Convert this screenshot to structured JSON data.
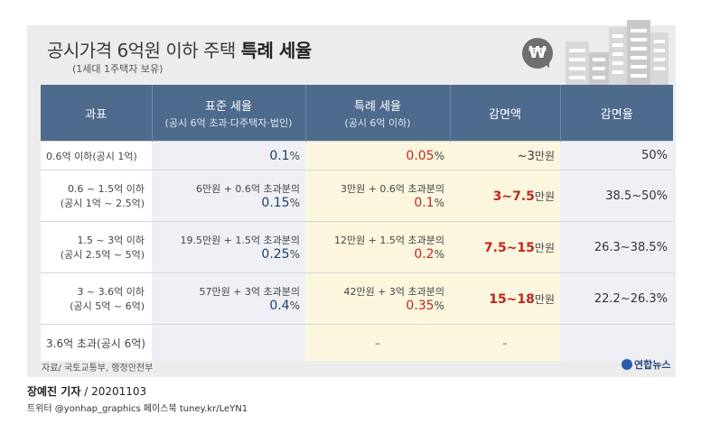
{
  "title": {
    "light": "공시가격 6억원 이하 주택",
    "bold": "특례 세율"
  },
  "subtitle": "(1세대 1주택자 보유)",
  "icon": {
    "name": "won-icon",
    "glyph": "₩"
  },
  "table": {
    "headers": [
      {
        "label": "과표",
        "sub": ""
      },
      {
        "label": "표준 세율",
        "sub": "(공시 6억 초과·다주택자·법인)"
      },
      {
        "label": "특례 세율",
        "sub": "(공시 6억 이하)"
      },
      {
        "label": "감면액",
        "sub": ""
      },
      {
        "label": "감면율",
        "sub": ""
      }
    ],
    "rows": [
      {
        "bracket": "0.6억 이하(공시 1억)",
        "bracket2": "",
        "std_base": "",
        "std_rate": "0.1",
        "std_unit": "%",
        "sp_base": "",
        "sp_rate": "0.05",
        "sp_unit": "%",
        "cut": "~3",
        "cut_unit": "만원",
        "cut_prefix_plain": true,
        "cut_rate": "50%"
      },
      {
        "bracket": "0.6 ~ 1.5억 이하",
        "bracket2": "(공시 1억 ~ 2.5억)",
        "std_base": "6만원 + 0.6억 초과분의",
        "std_rate": "0.15",
        "std_unit": "%",
        "sp_base": "3만원 + 0.6억 초과분의",
        "sp_rate": "0.1",
        "sp_unit": "%",
        "cut": "3~7.5",
        "cut_unit": "만원",
        "cut_rate": "38.5~50%"
      },
      {
        "bracket": "1.5 ~ 3억 이하",
        "bracket2": "(공시 2.5억 ~ 5억)",
        "std_base": "19.5만원 + 1.5억 초과분의",
        "std_rate": "0.25",
        "std_unit": "%",
        "sp_base": "12만원 + 1.5억 초과분의",
        "sp_rate": "0.2",
        "sp_unit": "%",
        "cut": "7.5~15",
        "cut_unit": "만원",
        "cut_rate": "26.3~38.5%"
      },
      {
        "bracket": "3 ~ 3.6억 이하",
        "bracket2": "(공시 5억 ~ 6억)",
        "std_base": "57만원 + 3억 초과분의",
        "std_rate": "0.4",
        "std_unit": "%",
        "sp_base": "42만원 + 3억 초과분의",
        "sp_rate": "0.35",
        "sp_unit": "%",
        "cut": "15~18",
        "cut_unit": "만원",
        "cut_rate": "22.2~26.3%"
      },
      {
        "bracket": "3.6억 초과(공시 6억)",
        "bracket2": "",
        "dash": "–"
      }
    ]
  },
  "source": "자료/ 국토교통부, 행정안전부",
  "logo": "연합뉴스",
  "reporter": {
    "name": "장예진 기자",
    "date": " / 20201103"
  },
  "twitter": "트위터 @yonhap_graphics  페이스북 tuney.kr/LeYN1",
  "colors": {
    "header_bg": "#4e6a8c",
    "card_bg": "#ececec",
    "accent_red": "#c1271c",
    "accent_blue": "#1f3f66"
  }
}
